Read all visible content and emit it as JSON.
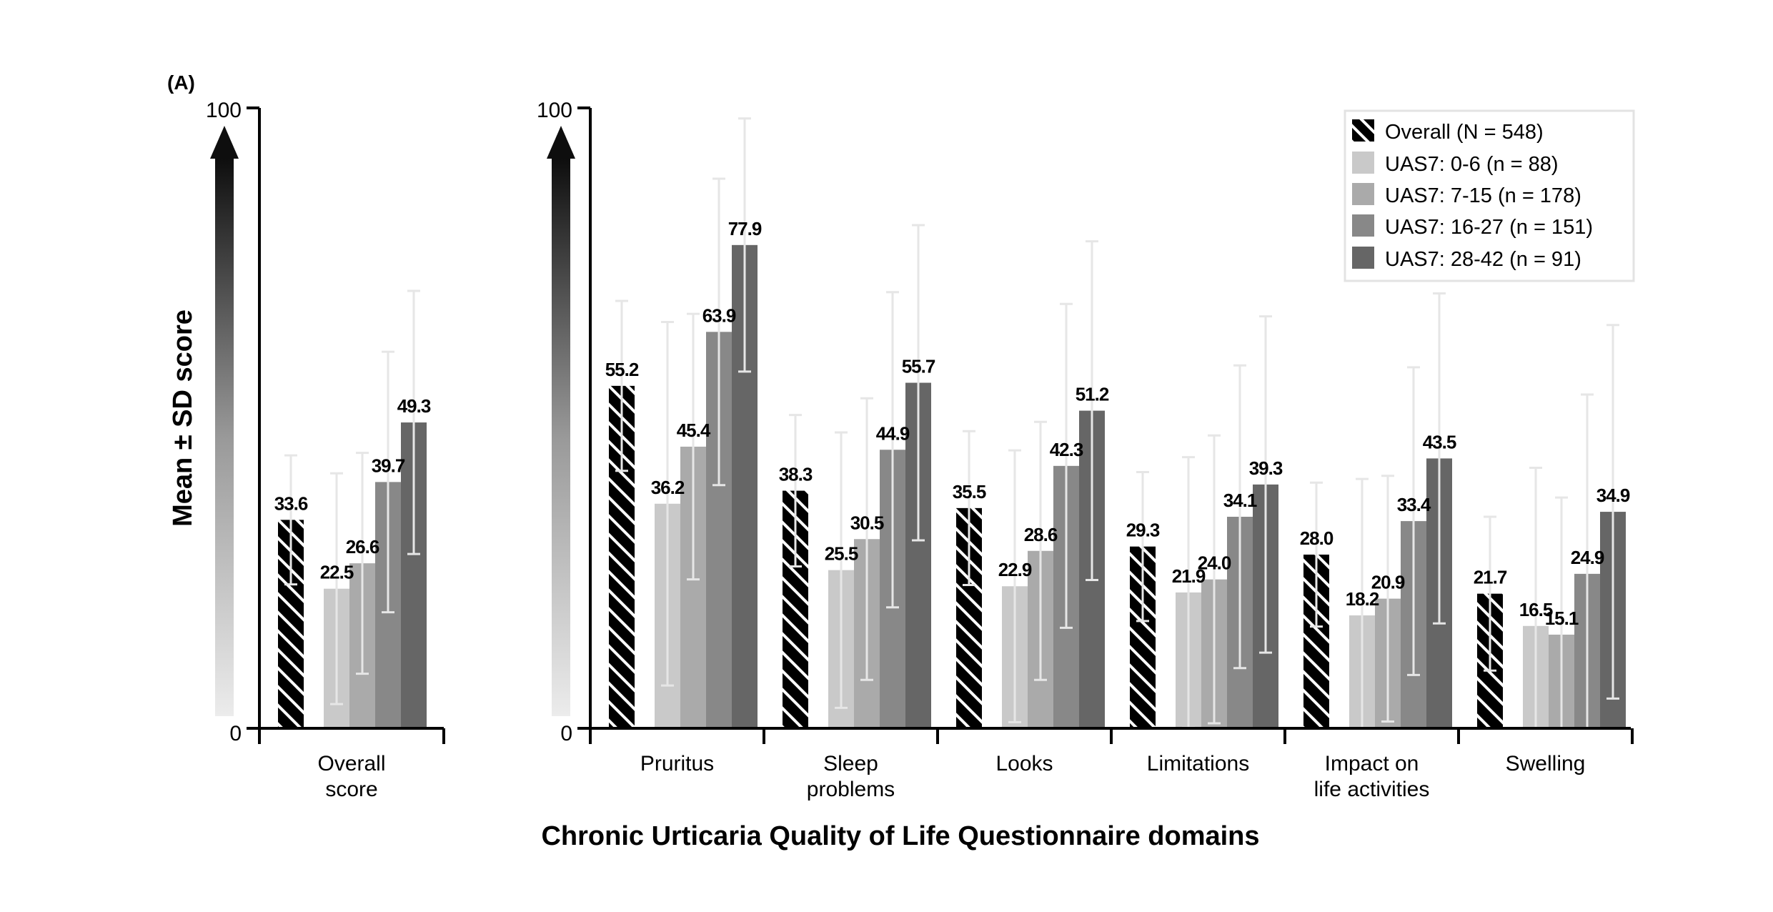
{
  "chart_data": {
    "type": "bar",
    "panel_label": "(A)",
    "ylabel": "Mean ± SD score",
    "xlabel": "Chronic Urticaria Quality of Life Questionnaire domains",
    "ylim": [
      0,
      100
    ],
    "yticks": [
      "0",
      "100"
    ],
    "grid": false,
    "legend_position": "top-right",
    "series": [
      {
        "name": "Overall (N = 548)",
        "color": "#000000",
        "pattern": "hatch"
      },
      {
        "name": "UAS7: 0-6 (n = 88)",
        "color": "#c9c9c9"
      },
      {
        "name": "UAS7: 7-15 (n = 178)",
        "color": "#aaaaaa"
      },
      {
        "name": "UAS7: 16-27 (n = 151)",
        "color": "#888888"
      },
      {
        "name": "UAS7: 28-42 (n = 91)",
        "color": "#666666"
      }
    ],
    "panels": [
      {
        "categories": [
          {
            "label": [
              "Overall",
              "score"
            ],
            "values": [
              33.6,
              22.5,
              26.6,
              39.7,
              49.3
            ],
            "sd": [
              10.4,
              18.6,
              17.8,
              21.0,
              21.2
            ]
          }
        ]
      },
      {
        "categories": [
          {
            "label": [
              "Pruritus"
            ],
            "values": [
              55.2,
              36.2,
              45.4,
              63.9,
              77.9
            ],
            "sd": [
              13.7,
              29.3,
              21.4,
              24.7,
              20.4
            ]
          },
          {
            "label": [
              "Sleep",
              "problems"
            ],
            "values": [
              38.3,
              25.5,
              30.5,
              44.9,
              55.7
            ],
            "sd": [
              12.2,
              22.2,
              22.7,
              25.4,
              25.4
            ]
          },
          {
            "label": [
              "Looks"
            ],
            "values": [
              35.5,
              22.9,
              28.6,
              42.3,
              51.2
            ],
            "sd": [
              12.4,
              21.9,
              20.8,
              26.1,
              27.3
            ]
          },
          {
            "label": [
              "Limitations"
            ],
            "values": [
              29.3,
              21.9,
              24.0,
              34.1,
              39.3
            ],
            "sd": [
              12.0,
              21.8,
              23.2,
              24.4,
              27.1
            ]
          },
          {
            "label": [
              "Impact on",
              "life activities"
            ],
            "values": [
              28.0,
              18.2,
              20.9,
              33.4,
              43.5
            ],
            "sd": [
              11.6,
              22.0,
              19.8,
              24.8,
              26.6
            ]
          },
          {
            "label": [
              "Swelling"
            ],
            "values": [
              21.7,
              16.5,
              15.1,
              24.9,
              34.9
            ],
            "sd": [
              12.4,
              25.5,
              22.1,
              28.9,
              30.1
            ]
          }
        ]
      }
    ]
  }
}
